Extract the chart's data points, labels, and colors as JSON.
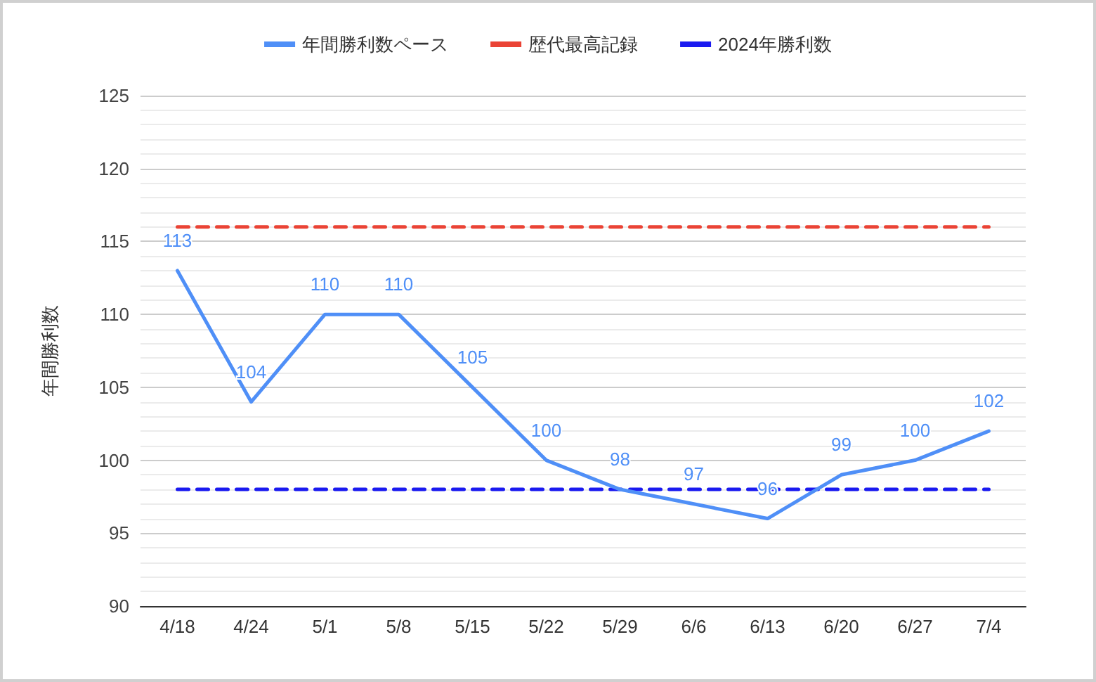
{
  "chart_data": {
    "type": "line",
    "ylabel": "年間勝利数",
    "categories": [
      "4/18",
      "4/24",
      "5/1",
      "5/8",
      "5/15",
      "5/22",
      "5/29",
      "6/6",
      "6/13",
      "6/20",
      "6/27",
      "7/4"
    ],
    "series": [
      {
        "name": "年間勝利数ペース",
        "color": "#4f8ff7",
        "line_style": "solid",
        "values": [
          113,
          104,
          110,
          110,
          105,
          100,
          98,
          97,
          96,
          99,
          100,
          102
        ],
        "value_labels": [
          "113",
          "104",
          "110",
          "110",
          "105",
          "100",
          "98",
          "97",
          "96",
          "99",
          "100",
          "102"
        ]
      },
      {
        "name": "歴代最高記録",
        "color": "#ea4335",
        "line_style": "dashed",
        "values": [
          116,
          116,
          116,
          116,
          116,
          116,
          116,
          116,
          116,
          116,
          116,
          116
        ]
      },
      {
        "name": "2024年勝利数",
        "color": "#1a1af0",
        "line_style": "dashed",
        "values": [
          98,
          98,
          98,
          98,
          98,
          98,
          98,
          98,
          98,
          98,
          98,
          98
        ]
      }
    ],
    "ylim": [
      90,
      125
    ],
    "yticks": [
      90,
      {
        "value": 91,
        "label": null
      },
      {
        "value": 92,
        "label": null
      },
      {
        "value": 93,
        "label": null
      },
      {
        "value": 94,
        "label": null
      },
      95,
      {
        "value": 96,
        "label": null
      },
      {
        "value": 97,
        "label": null
      },
      {
        "value": 98,
        "label": null
      },
      {
        "value": 99,
        "label": null
      },
      100,
      {
        "value": 101,
        "label": null
      },
      {
        "value": 102,
        "label": null
      },
      {
        "value": 103,
        "label": null
      },
      {
        "value": 104,
        "label": null
      },
      105,
      {
        "value": 106,
        "label": null
      },
      {
        "value": 107,
        "label": null
      },
      {
        "value": 108,
        "label": null
      },
      {
        "value": 109,
        "label": null
      },
      110,
      {
        "value": 111,
        "label": null
      },
      {
        "value": 112,
        "label": null
      },
      {
        "value": 113,
        "label": null
      },
      {
        "value": 114,
        "label": null
      },
      115,
      {
        "value": 116,
        "label": null
      },
      {
        "value": 117,
        "label": null
      },
      {
        "value": 118,
        "label": null
      },
      {
        "value": 119,
        "label": null
      },
      120,
      {
        "value": 121,
        "label": null
      },
      {
        "value": 122,
        "label": null
      },
      {
        "value": 123,
        "label": null
      },
      {
        "value": 124,
        "label": null
      },
      125
    ],
    "grid": "y",
    "legend": "top",
    "marker": "none"
  }
}
